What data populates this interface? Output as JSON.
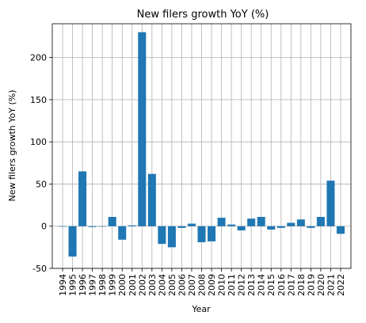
{
  "chart_data": {
    "type": "bar",
    "title": "New filers growth YoY (%)",
    "xlabel": "Year",
    "ylabel": "New filers growth YoY (%)",
    "ylim": [
      -50,
      240
    ],
    "yticks": [
      -50,
      0,
      50,
      100,
      150,
      200
    ],
    "grid": true,
    "bar_color": "#1f77b4",
    "categories": [
      "1994",
      "1995",
      "1996",
      "1997",
      "1998",
      "1999",
      "2000",
      "2001",
      "2002",
      "2003",
      "2004",
      "2005",
      "2006",
      "2007",
      "2008",
      "2009",
      "2010",
      "2011",
      "2012",
      "2013",
      "2014",
      "2015",
      "2016",
      "2017",
      "2018",
      "2019",
      "2020",
      "2021",
      "2022"
    ],
    "values": [
      0,
      -36,
      65,
      -1,
      0,
      11,
      -16,
      1,
      230,
      62,
      -21,
      -25,
      -2,
      3,
      -19,
      -18,
      10,
      2,
      -5,
      9,
      11,
      -4,
      -2,
      4,
      8,
      -2,
      11,
      54,
      -9
    ]
  }
}
